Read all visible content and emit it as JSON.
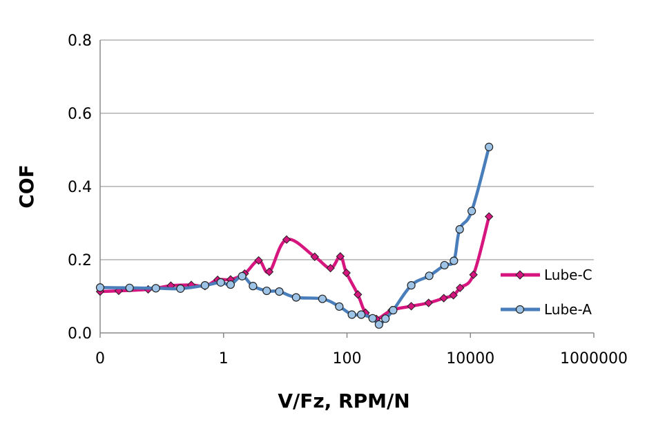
{
  "chart_data": {
    "type": "line",
    "title": "",
    "xlabel": "V/Fz, RPM/N",
    "ylabel": "COF",
    "x_scale": "log",
    "xlim": [
      0.01,
      1000000
    ],
    "ylim": [
      0,
      0.8
    ],
    "grid": "horizontal",
    "legend_position": "right",
    "x_tick_labels": [
      "0",
      "1",
      "100",
      "10000",
      "1000000"
    ],
    "y_tick_labels": [
      "0.0",
      "0.2",
      "0.4",
      "0.6",
      "0.8"
    ],
    "y_ticks": [
      0,
      0.2,
      0.4,
      0.6,
      0.8
    ],
    "series": [
      {
        "name": "Lube-C",
        "color": "#D6157E",
        "marker": "diamond",
        "points": [
          [
            0.01,
            0.113
          ],
          [
            0.02,
            0.115
          ],
          [
            0.06,
            0.119
          ],
          [
            0.14,
            0.129
          ],
          [
            0.3,
            0.131
          ],
          [
            0.5,
            0.128
          ],
          [
            0.8,
            0.145
          ],
          [
            1.3,
            0.146
          ],
          [
            2.2,
            0.162
          ],
          [
            3.7,
            0.198
          ],
          [
            5.5,
            0.167
          ],
          [
            10.5,
            0.255
          ],
          [
            30,
            0.208
          ],
          [
            54,
            0.177
          ],
          [
            78,
            0.209
          ],
          [
            98,
            0.164
          ],
          [
            150,
            0.105
          ],
          [
            200,
            0.055
          ],
          [
            300,
            0.038
          ],
          [
            530,
            0.062
          ],
          [
            1100,
            0.073
          ],
          [
            2100,
            0.082
          ],
          [
            3700,
            0.095
          ],
          [
            5300,
            0.103
          ],
          [
            6800,
            0.123
          ],
          [
            11200,
            0.159
          ],
          [
            20000,
            0.318
          ]
        ]
      },
      {
        "name": "Lube-A",
        "color": "#4A7EBB",
        "marker": "circle",
        "points": [
          [
            0.01,
            0.124
          ],
          [
            0.03,
            0.123
          ],
          [
            0.08,
            0.122
          ],
          [
            0.2,
            0.121
          ],
          [
            0.5,
            0.13
          ],
          [
            0.9,
            0.138
          ],
          [
            1.3,
            0.132
          ],
          [
            2,
            0.155
          ],
          [
            3,
            0.128
          ],
          [
            5,
            0.115
          ],
          [
            8,
            0.113
          ],
          [
            15,
            0.097
          ],
          [
            40,
            0.093
          ],
          [
            75,
            0.072
          ],
          [
            120,
            0.05
          ],
          [
            170,
            0.05
          ],
          [
            260,
            0.04
          ],
          [
            330,
            0.023
          ],
          [
            420,
            0.039
          ],
          [
            560,
            0.062
          ],
          [
            1100,
            0.13
          ],
          [
            2150,
            0.156
          ],
          [
            3800,
            0.185
          ],
          [
            5400,
            0.197
          ],
          [
            6700,
            0.283
          ],
          [
            10500,
            0.333
          ],
          [
            20000,
            0.508
          ]
        ]
      }
    ]
  }
}
